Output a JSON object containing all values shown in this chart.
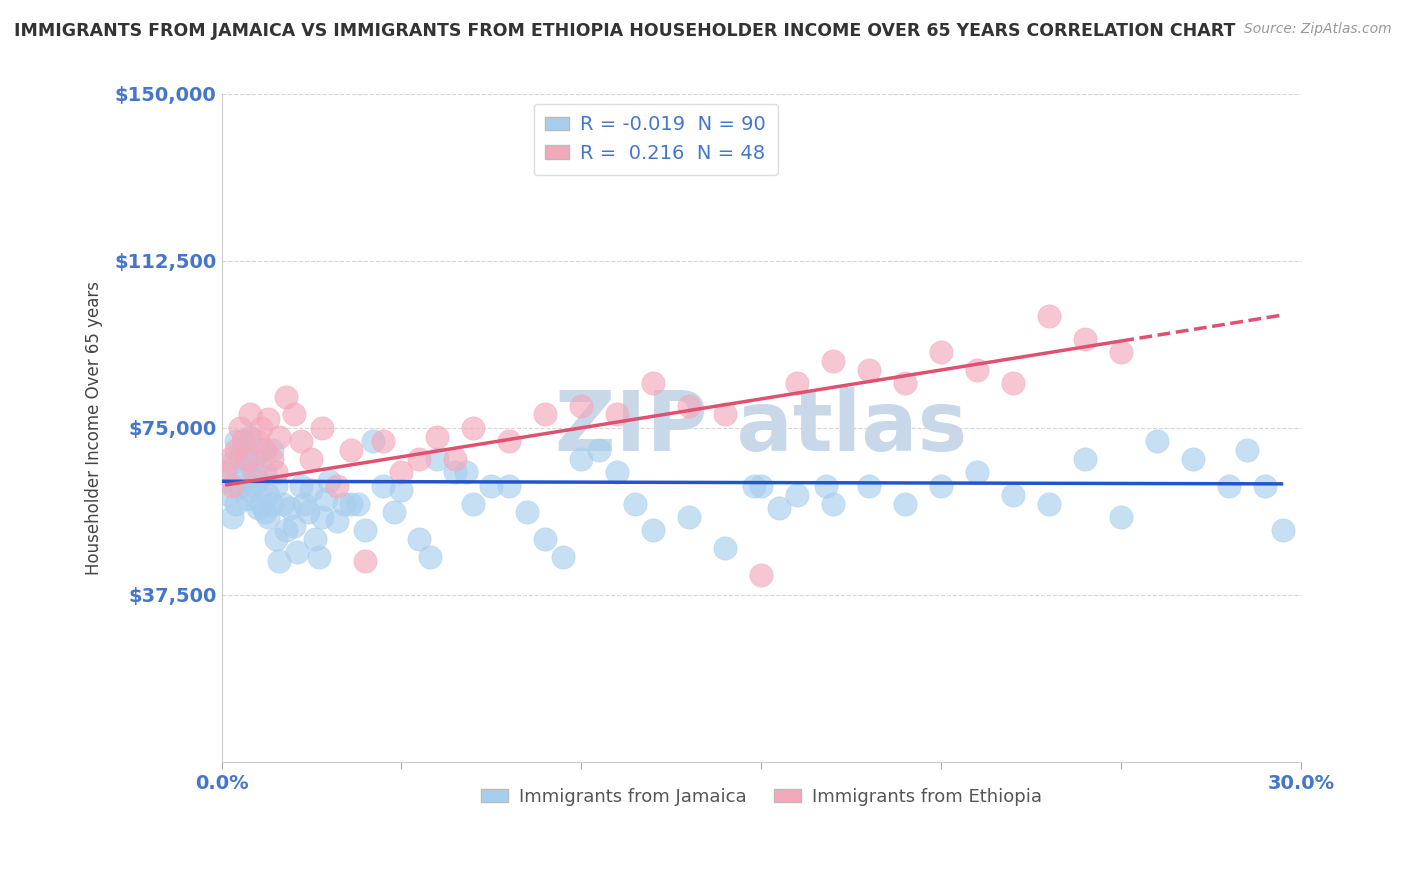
{
  "title": "IMMIGRANTS FROM JAMAICA VS IMMIGRANTS FROM ETHIOPIA HOUSEHOLDER INCOME OVER 65 YEARS CORRELATION CHART",
  "source": "Source: ZipAtlas.com",
  "ylabel": "Householder Income Over 65 years",
  "xlim": [
    0.0,
    0.3
  ],
  "ylim": [
    0,
    150000
  ],
  "yticks": [
    0,
    37500,
    75000,
    112500,
    150000
  ],
  "ytick_labels": [
    "",
    "$37,500",
    "$75,000",
    "$112,500",
    "$150,000"
  ],
  "xticks": [
    0.0,
    0.05,
    0.1,
    0.15,
    0.2,
    0.25,
    0.3
  ],
  "xtick_labels": [
    "0.0%",
    "",
    "",
    "",
    "",
    "",
    "30.0%"
  ],
  "jamaica_R": -0.019,
  "jamaica_N": 90,
  "ethiopia_R": 0.216,
  "ethiopia_N": 48,
  "jamaica_color": "#A8CEED",
  "ethiopia_color": "#F4A8BC",
  "jamaica_line_color": "#2255CC",
  "ethiopia_line_color": "#E05070",
  "background_color": "#FFFFFF",
  "grid_color": "#CCCCCC",
  "legend_label_jamaica": "Immigrants from Jamaica",
  "legend_label_ethiopia": "Immigrants from Ethiopia",
  "title_color": "#333333",
  "axis_color": "#4477CC",
  "watermark_color": "#C8D8E8",
  "jamaica_x": [
    0.001,
    0.002,
    0.003,
    0.003,
    0.004,
    0.004,
    0.005,
    0.005,
    0.006,
    0.006,
    0.007,
    0.007,
    0.008,
    0.008,
    0.009,
    0.009,
    0.01,
    0.01,
    0.011,
    0.011,
    0.012,
    0.012,
    0.013,
    0.013,
    0.014,
    0.014,
    0.015,
    0.015,
    0.016,
    0.017,
    0.018,
    0.019,
    0.02,
    0.021,
    0.022,
    0.023,
    0.024,
    0.025,
    0.026,
    0.027,
    0.028,
    0.029,
    0.03,
    0.032,
    0.034,
    0.036,
    0.038,
    0.04,
    0.042,
    0.045,
    0.048,
    0.05,
    0.055,
    0.058,
    0.06,
    0.065,
    0.068,
    0.07,
    0.075,
    0.08,
    0.085,
    0.09,
    0.095,
    0.1,
    0.105,
    0.11,
    0.115,
    0.12,
    0.13,
    0.14,
    0.15,
    0.155,
    0.16,
    0.17,
    0.18,
    0.19,
    0.2,
    0.22,
    0.24,
    0.26,
    0.27,
    0.28,
    0.285,
    0.29,
    0.148,
    0.168,
    0.21,
    0.23,
    0.25,
    0.295
  ],
  "jamaica_y": [
    63000,
    60000,
    55000,
    67000,
    72000,
    58000,
    62000,
    68000,
    72000,
    64000,
    59000,
    67000,
    73000,
    61000,
    62000,
    68000,
    57000,
    63000,
    58000,
    70000,
    56000,
    65000,
    60000,
    55000,
    70000,
    58000,
    62000,
    50000,
    45000,
    58000,
    52000,
    57000,
    53000,
    47000,
    62000,
    58000,
    56000,
    61000,
    50000,
    46000,
    55000,
    59000,
    63000,
    54000,
    58000,
    58000,
    58000,
    52000,
    72000,
    62000,
    56000,
    61000,
    50000,
    46000,
    68000,
    65000,
    65000,
    58000,
    62000,
    62000,
    56000,
    50000,
    46000,
    68000,
    70000,
    65000,
    58000,
    52000,
    55000,
    48000,
    62000,
    57000,
    60000,
    58000,
    62000,
    58000,
    62000,
    60000,
    68000,
    72000,
    68000,
    62000,
    70000,
    62000,
    62000,
    62000,
    65000,
    58000,
    55000,
    52000
  ],
  "ethiopia_x": [
    0.001,
    0.002,
    0.003,
    0.004,
    0.005,
    0.006,
    0.007,
    0.008,
    0.009,
    0.01,
    0.011,
    0.012,
    0.013,
    0.014,
    0.015,
    0.016,
    0.018,
    0.02,
    0.022,
    0.025,
    0.028,
    0.032,
    0.036,
    0.04,
    0.045,
    0.05,
    0.055,
    0.06,
    0.065,
    0.07,
    0.08,
    0.09,
    0.1,
    0.11,
    0.12,
    0.13,
    0.14,
    0.15,
    0.16,
    0.17,
    0.18,
    0.19,
    0.2,
    0.21,
    0.22,
    0.23,
    0.24,
    0.25
  ],
  "ethiopia_y": [
    65000,
    68000,
    62000,
    70000,
    75000,
    72000,
    68000,
    78000,
    65000,
    72000,
    75000,
    70000,
    77000,
    68000,
    65000,
    73000,
    82000,
    78000,
    72000,
    68000,
    75000,
    62000,
    70000,
    45000,
    72000,
    65000,
    68000,
    73000,
    68000,
    75000,
    72000,
    78000,
    80000,
    78000,
    85000,
    80000,
    78000,
    42000,
    85000,
    90000,
    88000,
    85000,
    92000,
    88000,
    85000,
    100000,
    95000,
    92000
  ]
}
